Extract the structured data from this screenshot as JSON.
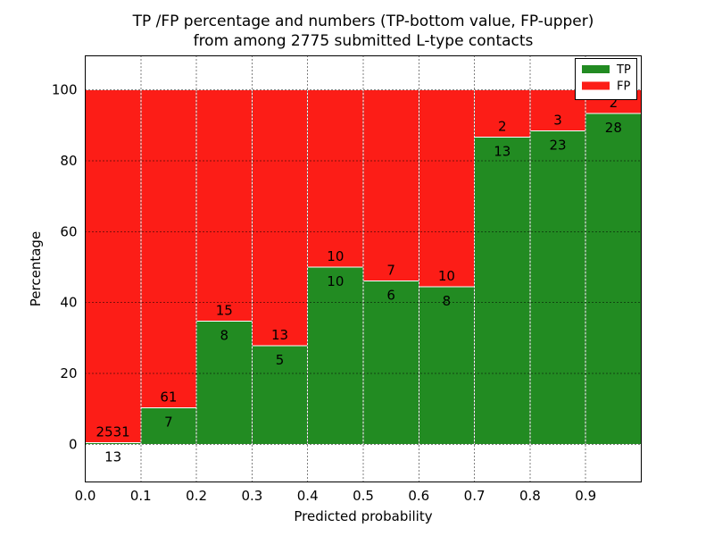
{
  "figure": {
    "background": "#ffffff"
  },
  "chart_data": {
    "type": "bar",
    "stacked": true,
    "normalized_to_percent": true,
    "title_lines": [
      "TP /FP percentage and numbers (TP-bottom value, FP-upper)",
      "from among 2775 submitted L-type contacts"
    ],
    "xlabel": "Predicted probability",
    "ylabel": "Percentage",
    "xlim": [
      0.0,
      1.0
    ],
    "ylim": [
      -10.6,
      109.6
    ],
    "x_tick_labels": [
      "0.0",
      "0.1",
      "0.2",
      "0.3",
      "0.4",
      "0.5",
      "0.6",
      "0.7",
      "0.8",
      "0.9"
    ],
    "x_tick_values": [
      0.0,
      0.1,
      0.2,
      0.3,
      0.4,
      0.5,
      0.6,
      0.7,
      0.8,
      0.9
    ],
    "y_tick_labels": [
      "0",
      "20",
      "40",
      "60",
      "80",
      "100"
    ],
    "y_tick_values": [
      0,
      20,
      40,
      60,
      80,
      100
    ],
    "grid": {
      "style": "dotted",
      "color": "#000000"
    },
    "bar_edge_color": "#ffffff",
    "frame_color": "#000000",
    "total_contacts": 2775,
    "legend_position": "upper right",
    "series": [
      {
        "name": "TP",
        "color": "#228b22"
      },
      {
        "name": "FP",
        "color": "#fc1d17"
      }
    ],
    "bins": [
      {
        "x0": 0.0,
        "x1": 0.1,
        "tp": 13,
        "fp": 2531,
        "tp_pct": 0.5
      },
      {
        "x0": 0.1,
        "x1": 0.2,
        "tp": 7,
        "fp": 61,
        "tp_pct": 10.3
      },
      {
        "x0": 0.2,
        "x1": 0.3,
        "tp": 8,
        "fp": 15,
        "tp_pct": 34.8
      },
      {
        "x0": 0.3,
        "x1": 0.4,
        "tp": 5,
        "fp": 13,
        "tp_pct": 27.8
      },
      {
        "x0": 0.4,
        "x1": 0.5,
        "tp": 10,
        "fp": 10,
        "tp_pct": 50.0
      },
      {
        "x0": 0.5,
        "x1": 0.6,
        "tp": 6,
        "fp": 7,
        "tp_pct": 46.2
      },
      {
        "x0": 0.6,
        "x1": 0.7,
        "tp": 8,
        "fp": 10,
        "tp_pct": 44.4
      },
      {
        "x0": 0.7,
        "x1": 0.8,
        "tp": 13,
        "fp": 2,
        "tp_pct": 86.7
      },
      {
        "x0": 0.8,
        "x1": 0.9,
        "tp": 23,
        "fp": 3,
        "tp_pct": 88.5
      },
      {
        "x0": 0.9,
        "x1": 1.0,
        "tp": 28,
        "fp": 2,
        "tp_pct": 93.3
      }
    ]
  }
}
